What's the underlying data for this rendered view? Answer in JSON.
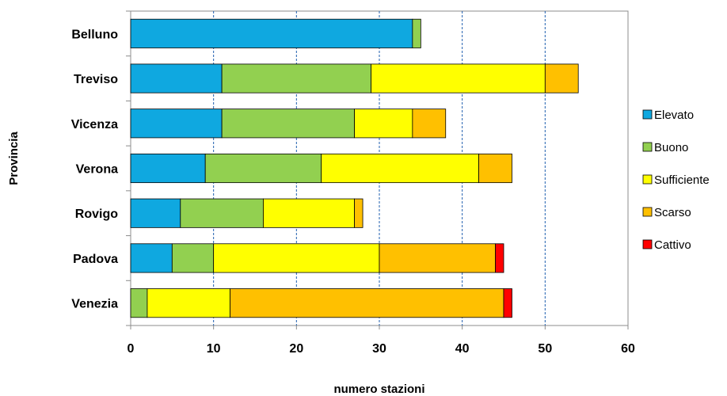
{
  "chart_data": {
    "type": "bar",
    "orientation": "horizontal",
    "stacked": true,
    "categories": [
      "Belluno",
      "Treviso",
      "Vicenza",
      "Verona",
      "Rovigo",
      "Padova",
      "Venezia"
    ],
    "series": [
      {
        "name": "Elevato",
        "color": "#0FA8E0",
        "values": [
          34,
          11,
          11,
          9,
          6,
          5,
          0
        ]
      },
      {
        "name": "Buono",
        "color": "#92D050",
        "values": [
          1,
          18,
          16,
          14,
          10,
          5,
          2
        ]
      },
      {
        "name": "Sufficiente",
        "color": "#FFFF00",
        "values": [
          0,
          21,
          7,
          19,
          11,
          20,
          10
        ]
      },
      {
        "name": "Scarso",
        "color": "#FFC000",
        "values": [
          0,
          4,
          4,
          4,
          1,
          14,
          33
        ]
      },
      {
        "name": "Cattivo",
        "color": "#FF0000",
        "values": [
          0,
          0,
          0,
          0,
          0,
          1,
          1
        ]
      }
    ],
    "xlabel": "numero stazioni",
    "ylabel": "Provincia",
    "xlim": [
      0,
      60
    ],
    "xticks": [
      0,
      10,
      20,
      30,
      40,
      50,
      60
    ],
    "grid": "vertical dashed",
    "legend_position": "right"
  }
}
